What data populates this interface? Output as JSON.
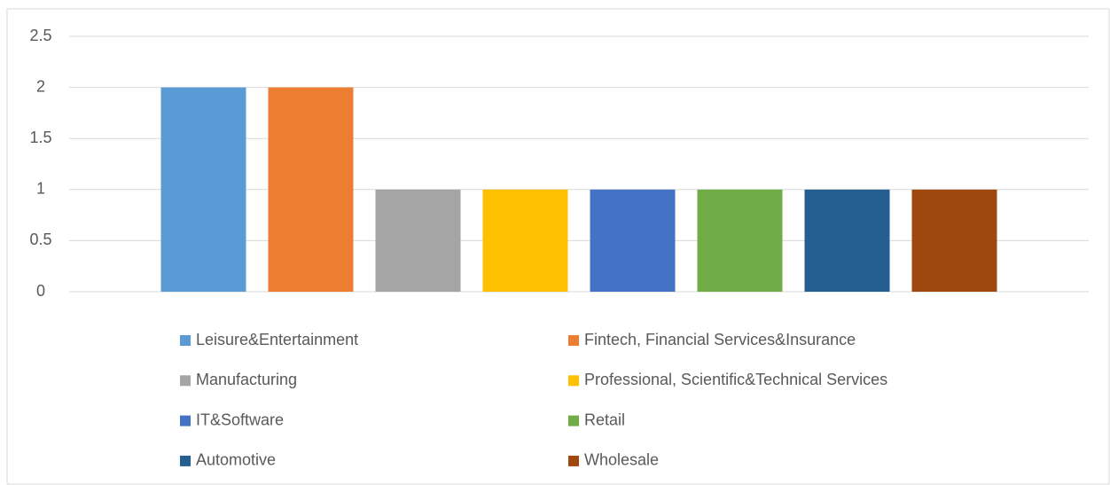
{
  "chart_data": {
    "type": "bar",
    "categories": [
      null
    ],
    "series": [
      {
        "name": "Leisure&Entertainment",
        "color": "#5b9bd5",
        "values": [
          2
        ]
      },
      {
        "name": "Fintech, Financial Services&Insurance",
        "color": "#ed7d31",
        "values": [
          2
        ]
      },
      {
        "name": "Manufacturing",
        "color": "#a5a5a5",
        "values": [
          1
        ]
      },
      {
        "name": "Professional, Scientific&Technical Services",
        "color": "#ffc000",
        "values": [
          1
        ]
      },
      {
        "name": "IT&Software",
        "color": "#4472c4",
        "values": [
          1
        ]
      },
      {
        "name": "Retail",
        "color": "#70ad47",
        "values": [
          1
        ]
      },
      {
        "name": "Automotive",
        "color": "#255e91",
        "values": [
          1
        ]
      },
      {
        "name": "Wholesale",
        "color": "#9e480e",
        "values": [
          1
        ]
      }
    ],
    "ylim": [
      0,
      2.5
    ],
    "yticks": [
      0,
      0.5,
      1,
      1.5,
      2,
      2.5
    ],
    "grid": true,
    "legend": "bottom"
  }
}
